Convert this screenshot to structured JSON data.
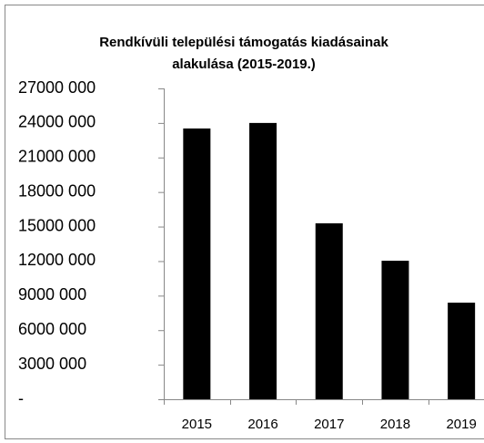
{
  "chart_data": {
    "type": "bar",
    "title": [
      "Rendkívüli települési támogatás kiadásainak",
      "alakulása (2015-2019.)"
    ],
    "categories": [
      "2015",
      "2016",
      "2017",
      "2018",
      "2019"
    ],
    "values": [
      23520000,
      24000000,
      15280000,
      12030000,
      8390000
    ],
    "color": "#000000",
    "ylim": [
      0,
      27000000
    ],
    "yticks": [
      {
        "value": 0,
        "label": "-"
      },
      {
        "value": 3000000,
        "label": "3000 000"
      },
      {
        "value": 6000000,
        "label": "6000 000"
      },
      {
        "value": 9000000,
        "label": "9000 000"
      },
      {
        "value": 12000000,
        "label": "12000 000"
      },
      {
        "value": 15000000,
        "label": "15000 000"
      },
      {
        "value": 18000000,
        "label": "18000 000"
      },
      {
        "value": 21000000,
        "label": "21000 000"
      },
      {
        "value": 24000000,
        "label": "24000 000"
      },
      {
        "value": 27000000,
        "label": "27000 000"
      }
    ],
    "grid": false
  }
}
